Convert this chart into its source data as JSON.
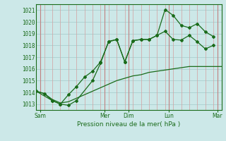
{
  "xlabel": "Pression niveau de la mer( hPa )",
  "bg_color": "#cce8e8",
  "line_color": "#1a6b1a",
  "grid_h_color": "#aacece",
  "grid_v_color": "#d4a0a0",
  "ylim": [
    1012.5,
    1021.5
  ],
  "xlim": [
    0,
    23
  ],
  "yticks": [
    1013,
    1014,
    1015,
    1016,
    1017,
    1018,
    1019,
    1020,
    1021
  ],
  "day_labels": [
    "Sam",
    "Mer",
    "Dim",
    "Lun",
    "Mar"
  ],
  "day_positions": [
    0.5,
    8.5,
    11.5,
    16.5,
    22.5
  ],
  "vline_positions": [
    0.5,
    8.5,
    11.5,
    16.5,
    22.5
  ],
  "s1_x": [
    0,
    1,
    2,
    3,
    4,
    5,
    6,
    7,
    8,
    9,
    10,
    11,
    12,
    13,
    14,
    15,
    16,
    17,
    18,
    19,
    20,
    21,
    22,
    23
  ],
  "s1_y": [
    1014.1,
    1013.9,
    1013.4,
    1013.1,
    1013.2,
    1013.5,
    1013.8,
    1014.1,
    1014.4,
    1014.7,
    1015.0,
    1015.2,
    1015.4,
    1015.5,
    1015.7,
    1015.8,
    1015.9,
    1016.0,
    1016.1,
    1016.2,
    1016.2,
    1016.2,
    1016.2,
    1016.2
  ],
  "s2_x": [
    0,
    1,
    2,
    3,
    4,
    5,
    6,
    7,
    8,
    9,
    10,
    11,
    12,
    13,
    14,
    15,
    16,
    17,
    18,
    19,
    20,
    21,
    22
  ],
  "s2_y": [
    1014.1,
    1013.9,
    1013.3,
    1013.0,
    1013.8,
    1014.5,
    1015.3,
    1015.8,
    1016.6,
    1018.3,
    1018.5,
    1016.6,
    1018.4,
    1018.5,
    1018.5,
    1018.85,
    1019.2,
    1018.5,
    1018.45,
    1018.85,
    1018.3,
    1017.7,
    1018.0
  ],
  "s3_x": [
    0,
    2,
    3,
    4,
    5,
    7,
    8,
    9,
    10,
    11,
    12,
    13,
    14,
    15,
    16,
    17,
    18,
    19,
    20,
    21,
    22
  ],
  "s3_y": [
    1014.1,
    1013.3,
    1013.0,
    1012.9,
    1013.3,
    1015.0,
    1016.5,
    1018.35,
    1018.5,
    1016.6,
    1018.4,
    1018.5,
    1018.5,
    1018.85,
    1021.05,
    1020.55,
    1019.7,
    1019.5,
    1019.85,
    1019.15,
    1018.75
  ]
}
